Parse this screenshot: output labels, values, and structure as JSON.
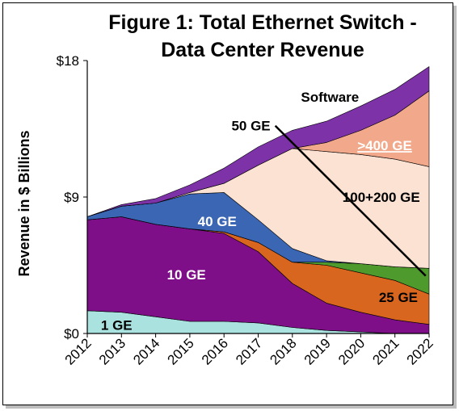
{
  "chart_data": {
    "type": "area",
    "stacked": true,
    "title_line1": "Figure 1: Total Ethernet Switch -",
    "title_line2": "Data Center Revenue",
    "ylabel": "Revenue in $ Billions",
    "y_ticks": [
      "$0",
      "$9",
      "$18"
    ],
    "ylim": [
      0,
      18
    ],
    "grid": false,
    "x": [
      2012,
      2013,
      2014,
      2015,
      2016,
      2017,
      2018,
      2019,
      2020,
      2021,
      2022
    ],
    "x_labels": [
      "2012",
      "2013",
      "2014",
      "2015",
      "2016",
      "2017",
      "2018",
      "2019",
      "2020",
      "2021",
      "2022"
    ],
    "series": [
      {
        "name": "1 GE",
        "color": "#a9e2df",
        "label_color": "#000000",
        "values": [
          1.5,
          1.4,
          1.1,
          0.8,
          0.8,
          0.7,
          0.4,
          0.2,
          0.1,
          0.0,
          0.0
        ]
      },
      {
        "name": "10 GE",
        "color": "#7f0f88",
        "label_color": "#ffffff",
        "values": [
          6.0,
          6.3,
          6.1,
          6.1,
          5.8,
          4.7,
          2.9,
          1.8,
          1.3,
          0.9,
          0.6
        ]
      },
      {
        "name": "25 GE",
        "color": "#d9661f",
        "label_color": "#000000",
        "values": [
          0.0,
          0.0,
          0.0,
          0.0,
          0.1,
          0.6,
          1.4,
          2.5,
          2.6,
          2.6,
          2.0
        ]
      },
      {
        "name": "50 GE",
        "color": "#4f9a2c",
        "label_color": "#000000",
        "values": [
          0.0,
          0.0,
          0.0,
          0.0,
          0.0,
          0.0,
          0.0,
          0.2,
          0.6,
          0.9,
          1.7
        ]
      },
      {
        "name": "40 GE",
        "color": "#3b66b4",
        "label_color": "#ffffff",
        "values": [
          0.2,
          0.7,
          1.4,
          2.3,
          2.6,
          1.5,
          0.9,
          0.1,
          0.0,
          0.0,
          0.0
        ]
      },
      {
        "name": "100+200 GE",
        "color": "#fbe2d3",
        "label_color": "#000000",
        "values": [
          0.0,
          0.0,
          0.0,
          0.1,
          0.6,
          3.6,
          6.6,
          7.2,
          7.2,
          7.1,
          6.7
        ]
      },
      {
        "name": ">400 GE",
        "color": "#f2a88a",
        "label_color": "#ffffff",
        "values": [
          0.0,
          0.0,
          0.0,
          0.0,
          0.0,
          0.0,
          0.0,
          0.6,
          1.6,
          2.9,
          5.0
        ]
      },
      {
        "name": "Software",
        "color": "#7d32a8",
        "label_color": "#000000",
        "values": [
          0.0,
          0.1,
          0.3,
          0.5,
          1.0,
          1.2,
          1.2,
          1.4,
          1.6,
          1.7,
          1.6
        ]
      }
    ],
    "annotation": {
      "text": "50 GE",
      "arrow_from": [
        2017.5,
        13.7
      ],
      "arrow_to": [
        2021.9,
        3.8
      ]
    }
  }
}
